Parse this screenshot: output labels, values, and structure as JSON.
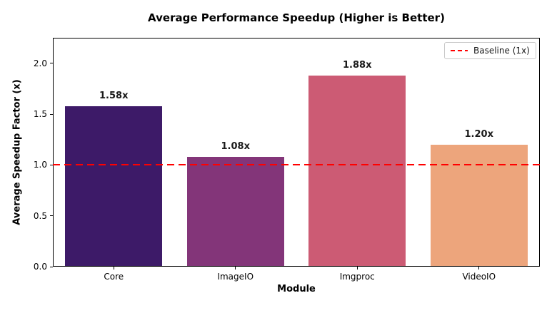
{
  "chart": {
    "title": "Average Performance Speedup (Higher is Better)",
    "xlabel": "Module",
    "ylabel": "Average Speedup Factor (x)",
    "legend": {
      "baseline_label": "Baseline (1x)"
    }
  },
  "chart_data": {
    "type": "bar",
    "title": "Average Performance Speedup (Higher is Better)",
    "xlabel": "Module",
    "ylabel": "Average Speedup Factor (x)",
    "categories": [
      "Core",
      "ImageIO",
      "Imgproc",
      "VideoIO"
    ],
    "values": [
      1.58,
      1.08,
      1.88,
      1.2
    ],
    "value_labels": [
      "1.58x",
      "1.08x",
      "1.88x",
      "1.20x"
    ],
    "bar_colors": [
      "#3d1a68",
      "#833579",
      "#cc5b74",
      "#eda57c"
    ],
    "baseline": {
      "value": 1.0,
      "label": "Baseline (1x)",
      "color": "#ff0000",
      "style": "dashed"
    },
    "ylim": [
      0,
      2.25
    ],
    "yticks": [
      "0.0",
      "0.5",
      "1.0",
      "1.5",
      "2.0"
    ],
    "grid": false,
    "legend_position": "upper right",
    "bar_width_fraction": 0.8
  }
}
